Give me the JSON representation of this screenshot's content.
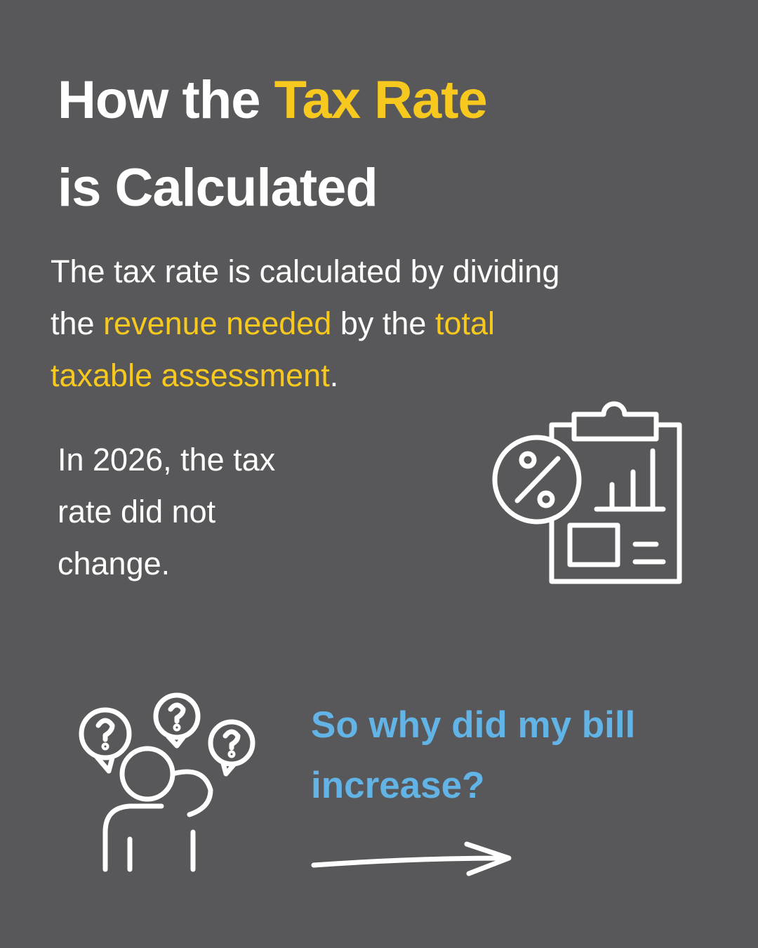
{
  "title": {
    "lines": [
      [
        {
          "text": "How the "
        },
        {
          "text": "Tax Rate",
          "highlight": true
        }
      ],
      [
        {
          "text": "is Calculated"
        }
      ]
    ]
  },
  "intro": {
    "lines": [
      [
        {
          "text": "The tax rate is calculated by dividing"
        }
      ],
      [
        {
          "text": "the "
        },
        {
          "text": "revenue needed",
          "highlight": true
        },
        {
          "text": " by the "
        },
        {
          "text": "total",
          "highlight": true
        }
      ],
      [
        {
          "text": "taxable assessment",
          "highlight": true
        },
        {
          "text": "."
        }
      ]
    ]
  },
  "note": {
    "lines": [
      "In 2026, the tax",
      "rate did not",
      "change."
    ]
  },
  "question": {
    "lines": [
      "So why did my bill",
      "increase?"
    ]
  }
}
